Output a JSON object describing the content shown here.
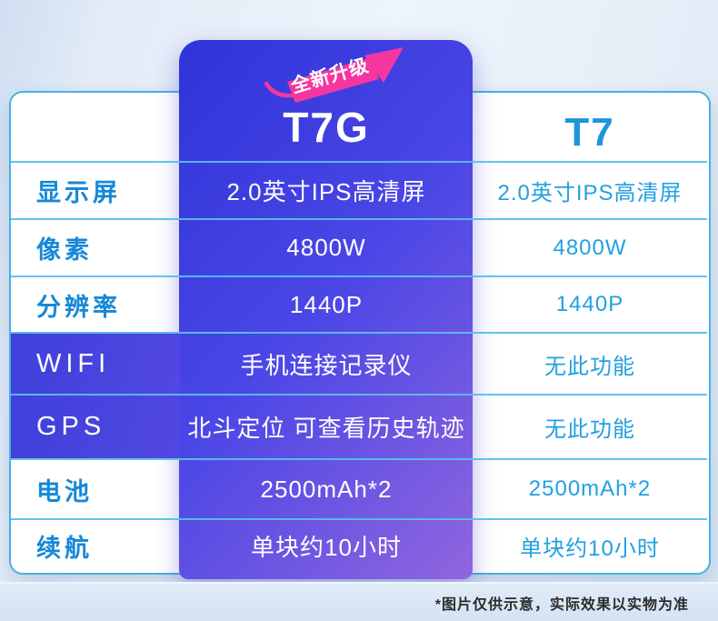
{
  "badge": {
    "label": "全新升级"
  },
  "header": {
    "left": "",
    "t7g": "T7G",
    "t7": "T7"
  },
  "rows": [
    {
      "label": "显示屏",
      "t7g": "2.0英寸IPS高清屏",
      "t7": "2.0英寸IPS高清屏",
      "highlight": false
    },
    {
      "label": "像素",
      "t7g": "4800W",
      "t7": "4800W",
      "highlight": false
    },
    {
      "label": "分辨率",
      "t7g": "1440P",
      "t7": "1440P",
      "highlight": false
    },
    {
      "label": "WIFI",
      "t7g": "手机连接记录仪",
      "t7": "无此功能",
      "highlight": true
    },
    {
      "label": "GPS",
      "t7g": "北斗定位 可查看历史轨迹",
      "t7": "无此功能",
      "highlight": true
    },
    {
      "label": "电池",
      "t7g": "2500mAh*2",
      "t7": "2500mAh*2",
      "highlight": false
    },
    {
      "label": "续航",
      "t7g": "单块约10小时",
      "t7": "单块约10小时",
      "highlight": false
    }
  ],
  "footer": {
    "disclaimer": "*图片仅供示意，实际效果以实物为准"
  },
  "colors": {
    "panel_blue": "#2f34d8",
    "panel_purple": "#9066de",
    "highlight_row_blue": "#4343dd",
    "badge_pink": "#f5369f",
    "label_blue": "#1688d8",
    "value_blue": "#21a0e1",
    "table_border": "#49b0e2",
    "background": "#e6eef8"
  }
}
